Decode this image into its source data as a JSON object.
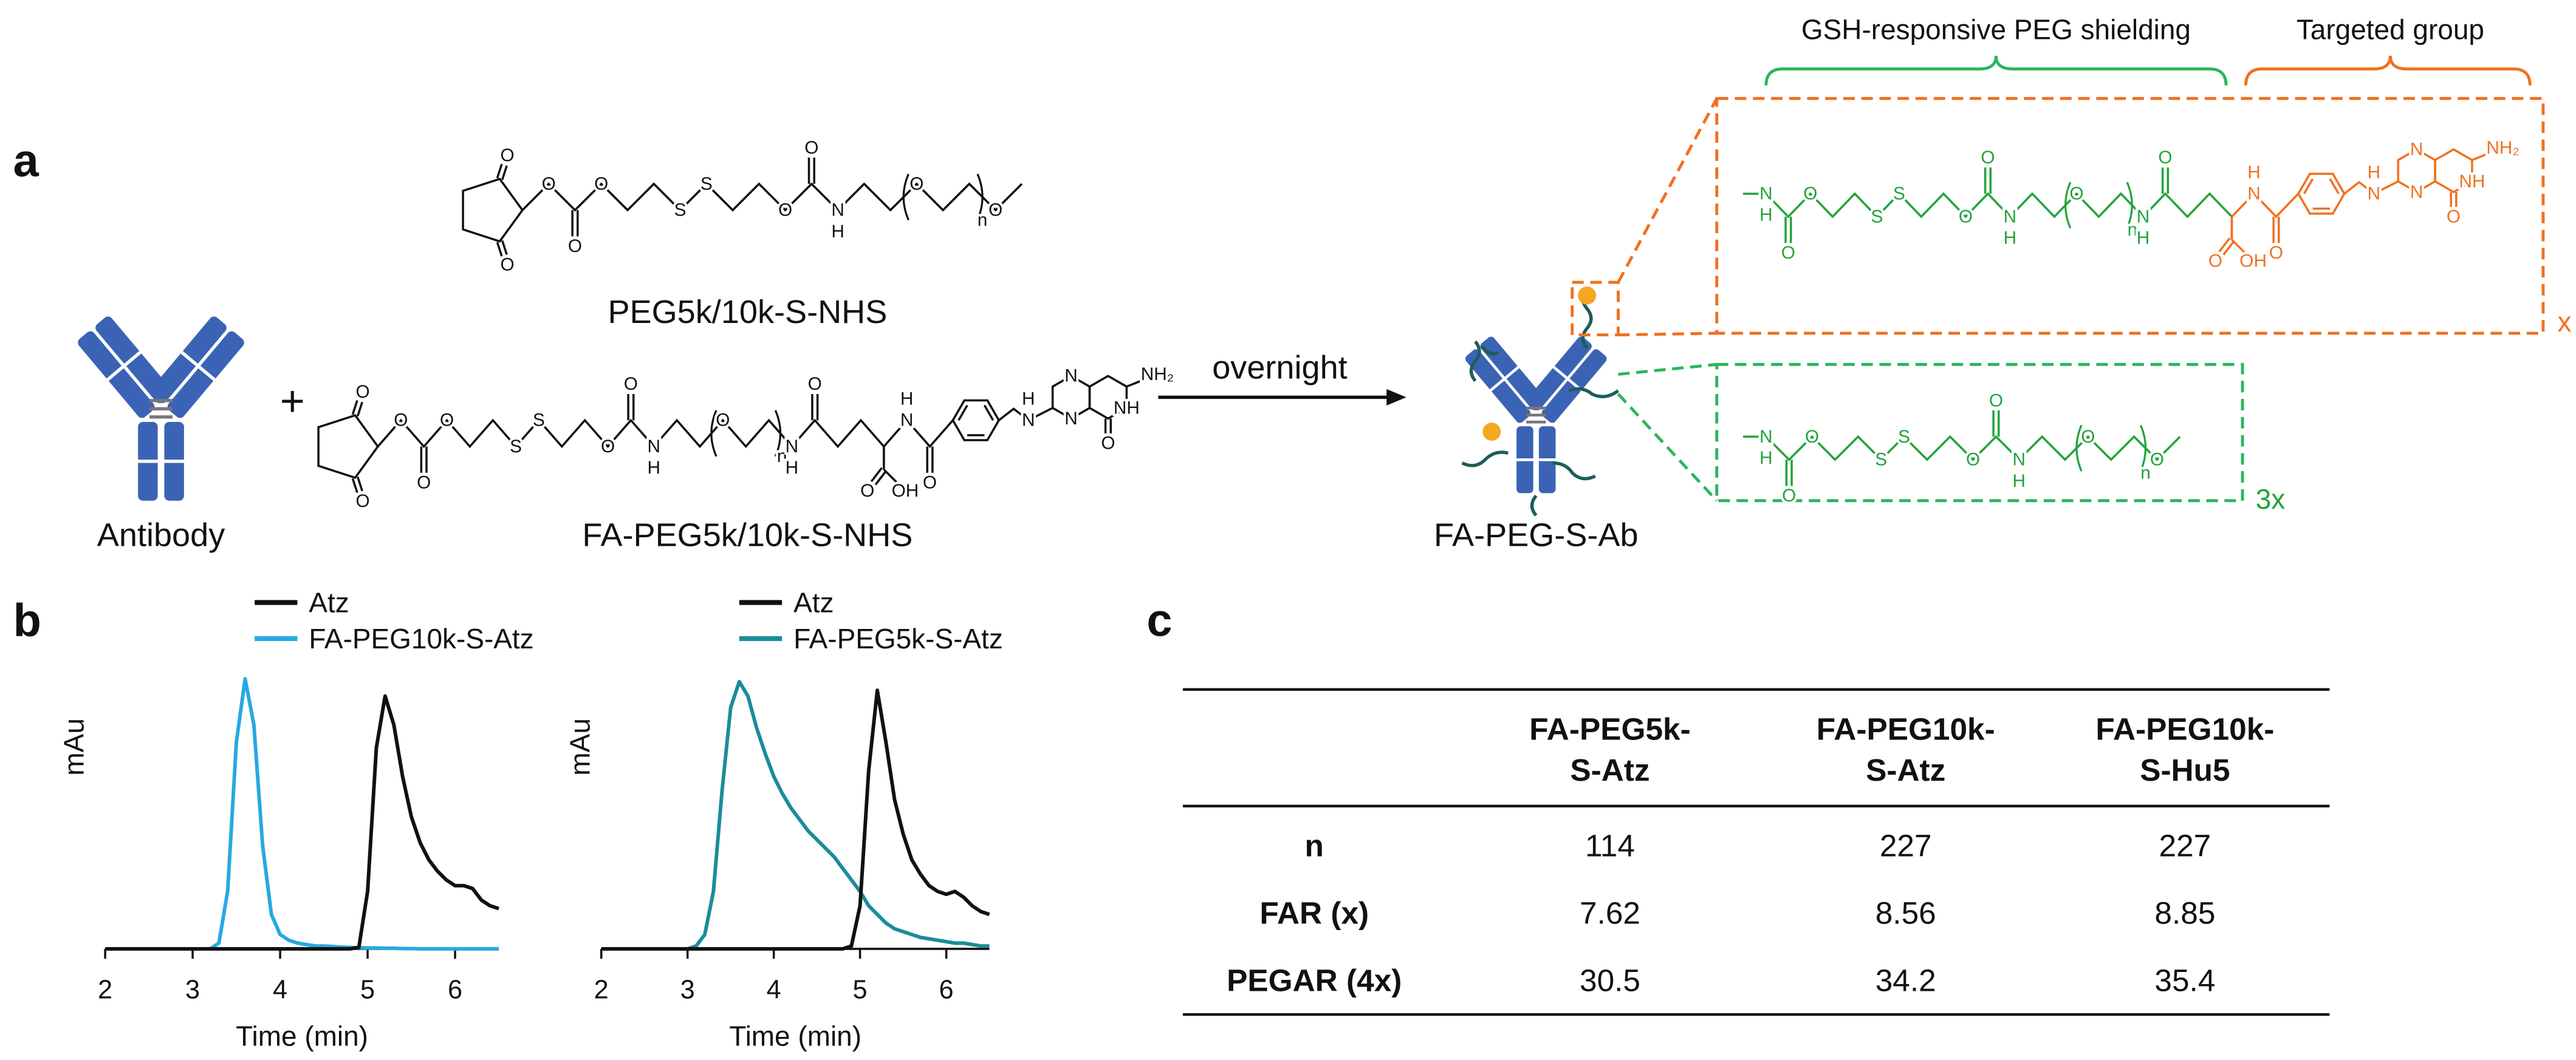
{
  "panel_labels": [
    "a",
    "b",
    "c"
  ],
  "scheme": {
    "antibody_label": "Antibody",
    "plus": "+",
    "reagent_1": {
      "name": "PEG5k/10k-S-NHS",
      "atoms": [
        "O",
        "O",
        "O",
        "O",
        "O",
        "S",
        "S",
        "O",
        "O",
        "N",
        "H",
        "O",
        "n",
        "O"
      ]
    },
    "reagent_2": {
      "name": "FA-PEG5k/10k-S-NHS",
      "atoms": [
        "O",
        "O",
        "O",
        "O",
        "O",
        "S",
        "S",
        "O",
        "O",
        "N",
        "H",
        "O",
        "n",
        "N",
        "H",
        "O",
        "O",
        "OH",
        "N",
        "H",
        "O",
        "N",
        "H",
        "N",
        "N",
        "NH₂",
        "NH",
        "O"
      ]
    },
    "arrow_label": "overnight",
    "product_name": "FA-PEG-S-Ab",
    "brace_labels": [
      "GSH-responsive PEG shielding",
      "Targeted group"
    ],
    "targeted_chain": {
      "multiplier": "x",
      "atoms": [
        "N",
        "H",
        "O",
        "O",
        "S",
        "S",
        "O",
        "O",
        "N",
        "H",
        "O",
        "n",
        "N",
        "H",
        "O",
        "O",
        "OH",
        "N",
        "H",
        "O",
        "N",
        "H",
        "N",
        "N",
        "NH₂",
        "NH",
        "O"
      ]
    },
    "shielding_chain": {
      "multiplier": "3x",
      "atoms": [
        "N",
        "H",
        "O",
        "O",
        "S",
        "S",
        "O",
        "O",
        "N",
        "H",
        "O",
        "n",
        "O"
      ]
    }
  },
  "chart_data": [
    {
      "type": "line",
      "xlabel": "Time (min)",
      "ylabel": "mAu",
      "x": [
        2.0,
        2.1,
        2.2,
        2.3,
        2.4,
        2.5,
        2.6,
        2.7,
        2.8,
        2.9,
        3.0,
        3.1,
        3.2,
        3.3,
        3.4,
        3.5,
        3.6,
        3.7,
        3.8,
        3.9,
        4.0,
        4.1,
        4.2,
        4.3,
        4.4,
        4.5,
        4.6,
        4.7,
        4.8,
        4.9,
        5.0,
        5.1,
        5.2,
        5.3,
        5.4,
        5.5,
        5.6,
        5.7,
        5.8,
        5.9,
        6.0,
        6.1,
        6.2,
        6.3,
        6.4,
        6.5
      ],
      "xlim": [
        2,
        6.5
      ],
      "xticks": [
        2,
        3,
        4,
        5,
        6
      ],
      "ylim": [
        0,
        100
      ],
      "series": [
        {
          "name": "Atz",
          "color": "#111111",
          "values": [
            0,
            0,
            0,
            0,
            0,
            0,
            0,
            0,
            0,
            0,
            0,
            0,
            0,
            0,
            0,
            0,
            0,
            0,
            0,
            0,
            0,
            0,
            0,
            0,
            0,
            0,
            0,
            0,
            0,
            0.5,
            20,
            70,
            88,
            78,
            60,
            46,
            37,
            31,
            27,
            24,
            22,
            22,
            21,
            17,
            15,
            14
          ]
        },
        {
          "name": "FA-PEG10k-S-Atz",
          "color": "#27a9e1",
          "values": [
            0,
            0,
            0,
            0,
            0,
            0,
            0,
            0,
            0,
            0,
            0,
            0,
            0,
            2,
            20,
            72,
            94,
            78,
            36,
            12,
            5,
            3,
            2,
            1.5,
            1,
            1,
            0.8,
            0.6,
            0.5,
            0.4,
            0.3,
            0.3,
            0.2,
            0.2,
            0.1,
            0.1,
            0,
            0,
            0,
            0,
            0,
            0,
            0,
            0,
            0,
            0
          ]
        }
      ]
    },
    {
      "type": "line",
      "xlabel": "Time (min)",
      "ylabel": "mAu",
      "x": [
        2.0,
        2.1,
        2.2,
        2.3,
        2.4,
        2.5,
        2.6,
        2.7,
        2.8,
        2.9,
        3.0,
        3.1,
        3.2,
        3.3,
        3.4,
        3.5,
        3.6,
        3.7,
        3.8,
        3.9,
        4.0,
        4.1,
        4.2,
        4.3,
        4.4,
        4.5,
        4.6,
        4.7,
        4.8,
        4.9,
        5.0,
        5.1,
        5.2,
        5.3,
        5.4,
        5.5,
        5.6,
        5.7,
        5.8,
        5.9,
        6.0,
        6.1,
        6.2,
        6.3,
        6.4,
        6.5
      ],
      "xlim": [
        2,
        6.5
      ],
      "xticks": [
        2,
        3,
        4,
        5,
        6
      ],
      "ylim": [
        0,
        100
      ],
      "series": [
        {
          "name": "Atz",
          "color": "#111111",
          "values": [
            0,
            0,
            0,
            0,
            0,
            0,
            0,
            0,
            0,
            0,
            0,
            0,
            0,
            0,
            0,
            0,
            0,
            0,
            0,
            0,
            0,
            0,
            0,
            0,
            0,
            0,
            0,
            0,
            0,
            1,
            15,
            62,
            90,
            72,
            52,
            40,
            31,
            26,
            22,
            20,
            19,
            20,
            18,
            15,
            13,
            12
          ]
        },
        {
          "name": "FA-PEG5k-S-Atz",
          "color": "#1a8c9c",
          "values": [
            0,
            0,
            0,
            0,
            0,
            0,
            0,
            0,
            0,
            0,
            0,
            1,
            5,
            20,
            55,
            84,
            93,
            88,
            77,
            68,
            60,
            54,
            49,
            45,
            41,
            38,
            35,
            32,
            28,
            24,
            20,
            15,
            12,
            9,
            7,
            6,
            5,
            4,
            3.5,
            3,
            2.5,
            2,
            2,
            1.5,
            1,
            1
          ]
        }
      ]
    }
  ],
  "table": {
    "header": [
      [
        "FA-PEG5k-",
        "S-Atz"
      ],
      [
        "FA-PEG10k-",
        "S-Atz"
      ],
      [
        "FA-PEG10k-",
        "S-Hu5"
      ]
    ],
    "rows": [
      [
        "n",
        "114",
        "227",
        "227"
      ],
      [
        "FAR (x)",
        "7.62",
        "8.56",
        "8.85"
      ],
      [
        "PEGAR (4x)",
        "30.5",
        "34.2",
        "35.4"
      ]
    ]
  }
}
